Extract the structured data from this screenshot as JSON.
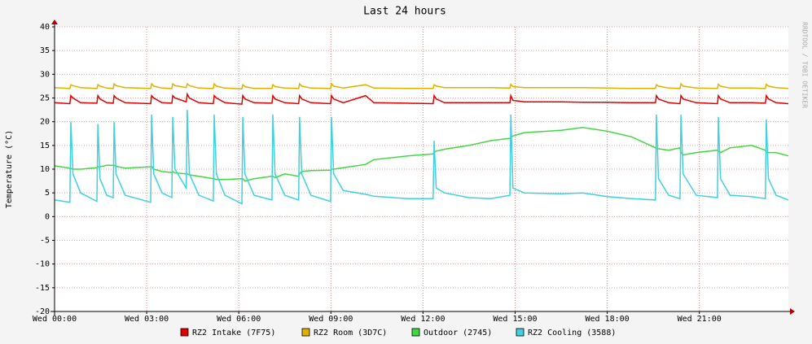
{
  "chart_data": {
    "type": "line",
    "title": "Last 24 hours",
    "ylabel": "Temperature (°C)",
    "watermark": "RRDTOOL / TOBI OETIKER",
    "x": [
      0,
      0.5,
      0.53,
      0.6,
      0.85,
      1.38,
      1.41,
      1.48,
      1.7,
      1.91,
      1.94,
      2.0,
      2.3,
      3.13,
      3.16,
      3.23,
      3.5,
      3.82,
      3.85,
      3.92,
      4.29,
      4.32,
      4.39,
      4.7,
      5.17,
      5.2,
      5.27,
      5.55,
      6.1,
      6.13,
      6.2,
      6.5,
      7.08,
      7.11,
      7.18,
      7.5,
      7.95,
      7.98,
      8.05,
      8.35,
      8.99,
      9.02,
      9.09,
      9.4,
      10.13,
      10.4,
      11.5,
      12.33,
      12.36,
      12.43,
      12.7,
      13.5,
      14.2,
      14.83,
      14.86,
      14.93,
      15.3,
      16.5,
      17.2,
      18.0,
      18.8,
      19.57,
      19.6,
      19.67,
      20.0,
      20.37,
      20.4,
      20.47,
      20.9,
      21.59,
      21.62,
      21.69,
      22.0,
      22.7,
      23.15,
      23.18,
      23.25,
      23.5,
      23.9
    ],
    "series": [
      {
        "name": "RZ2 Intake (7F75)",
        "color": "#e00000",
        "values": [
          24,
          23.8,
          25.5,
          25,
          24,
          23.9,
          25.5,
          24.8,
          24,
          23.9,
          25.5,
          25,
          24,
          23.8,
          25.5,
          25,
          24,
          23.9,
          25.5,
          25,
          24.2,
          25.8,
          25,
          24,
          23.8,
          25.5,
          25,
          24,
          23.7,
          25.5,
          24.8,
          24,
          23.9,
          25.5,
          24.8,
          24,
          23.8,
          25.5,
          24.8,
          24,
          23.8,
          25.5,
          24.8,
          24,
          25.5,
          24,
          23.9,
          23.8,
          25.5,
          24.8,
          24,
          24,
          24,
          24,
          25.5,
          24.5,
          24.2,
          24.2,
          24.1,
          24.1,
          24,
          24,
          25.5,
          24.8,
          24,
          23.8,
          25.5,
          24.8,
          24,
          23.8,
          25.5,
          24.8,
          24,
          24,
          23.9,
          25.5,
          24.8,
          24,
          23.8
        ]
      },
      {
        "name": "RZ2 Room (3D7C)",
        "color": "#e0b000",
        "values": [
          27.2,
          27,
          27.8,
          27.6,
          27.2,
          27,
          27.8,
          27.5,
          27.1,
          27,
          28,
          27.6,
          27.2,
          27,
          28,
          27.5,
          27.1,
          27,
          28,
          27.6,
          27.2,
          28,
          27.6,
          27.1,
          27,
          28,
          27.5,
          27.1,
          26.9,
          27.8,
          27.4,
          27,
          27,
          27.8,
          27.4,
          27.1,
          27,
          28,
          27.5,
          27.1,
          27,
          28,
          27.5,
          27.1,
          27.8,
          27.1,
          27,
          27,
          27.8,
          27.5,
          27.2,
          27.2,
          27.2,
          27.1,
          27.9,
          27.4,
          27.2,
          27.2,
          27.2,
          27.1,
          27,
          27,
          27.8,
          27.5,
          27.1,
          27,
          28,
          27.5,
          27.1,
          27,
          27.9,
          27.5,
          27.1,
          27.1,
          27,
          27.9,
          27.5,
          27.2,
          27
        ]
      },
      {
        "name": "Outdoor (2745)",
        "color": "#40d840",
        "values": [
          10.7,
          10.2,
          10.1,
          10,
          10,
          10.3,
          10.5,
          10.5,
          10.8,
          10.8,
          10.8,
          10.6,
          10.2,
          10.5,
          10.6,
          10,
          9.5,
          9.3,
          9.5,
          9.2,
          9,
          9,
          8.8,
          8.5,
          8,
          8,
          7.8,
          7.8,
          8,
          8,
          7.5,
          8,
          8.5,
          8.5,
          8.2,
          9,
          8.5,
          9,
          9.5,
          9.7,
          9.8,
          10,
          10,
          10.3,
          11,
          12,
          12.8,
          13.2,
          13.5,
          13.8,
          14.2,
          15,
          16,
          16.5,
          16.8,
          17,
          17.7,
          18.2,
          18.8,
          18,
          16.8,
          14.5,
          14.3,
          14.3,
          14,
          14.5,
          13.5,
          13,
          13.5,
          14,
          13.8,
          13.5,
          14.5,
          15,
          14,
          13.5,
          13.5,
          13.5,
          12.8
        ]
      },
      {
        "name": "RZ2 Cooling (3588)",
        "color": "#40d0e0",
        "values": [
          3.5,
          3,
          20,
          9,
          5,
          3.2,
          19.5,
          8,
          4.5,
          4,
          20,
          9,
          4.5,
          3,
          21.5,
          9,
          5,
          4,
          21,
          10,
          6,
          22.5,
          9,
          4.5,
          3.3,
          21.5,
          9,
          4.5,
          2.7,
          21,
          9,
          4.5,
          3.5,
          21.5,
          9,
          4.5,
          3.5,
          21,
          9,
          4.5,
          3.2,
          21,
          9,
          5.5,
          4.7,
          4.3,
          3.8,
          3.8,
          16,
          6,
          5,
          4,
          3.8,
          4.5,
          21.5,
          6,
          5,
          4.8,
          5,
          4.2,
          3.8,
          3.5,
          21.5,
          8,
          4.5,
          3.8,
          21.5,
          9,
          4.5,
          4,
          21,
          8,
          4.5,
          4.2,
          3.8,
          20.5,
          8,
          4.5,
          3.5
        ]
      }
    ],
    "xlim": [
      0,
      23.9
    ],
    "xticks": [
      {
        "value": 0,
        "label": "Wed 00:00"
      },
      {
        "value": 3,
        "label": "Wed 03:00"
      },
      {
        "value": 6,
        "label": "Wed 06:00"
      },
      {
        "value": 9,
        "label": "Wed 09:00"
      },
      {
        "value": 12,
        "label": "Wed 12:00"
      },
      {
        "value": 15,
        "label": "Wed 15:00"
      },
      {
        "value": 18,
        "label": "Wed 18:00"
      },
      {
        "value": 21,
        "label": "Wed 21:00"
      }
    ],
    "ylim": [
      -20,
      40
    ],
    "yticks": [
      -20,
      -15,
      -10,
      -5,
      0,
      5,
      10,
      15,
      20,
      25,
      30,
      35,
      40
    ],
    "grid": true,
    "legend": "bottom"
  }
}
